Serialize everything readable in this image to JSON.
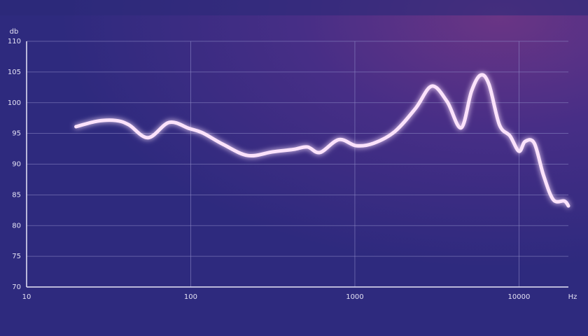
{
  "chart_data": {
    "type": "line",
    "x_label": "Hz",
    "y_label": "db",
    "x": [
      20,
      27,
      35,
      42,
      55,
      74,
      98,
      118,
      158,
      223,
      315,
      422,
      514,
      613,
      799,
      1020,
      1300,
      1750,
      2346,
      2940,
      3645,
      4440,
      5140,
      5840,
      6560,
      7600,
      8810,
      10000,
      10900,
      12400,
      14100,
      16200,
      18900,
      20000
    ],
    "series": [
      {
        "color": "#fbe2fb",
        "values": [
          96.1,
          97.0,
          97.1,
          96.4,
          94.3,
          96.8,
          95.8,
          95.1,
          93.2,
          91.4,
          92.0,
          92.4,
          92.8,
          91.9,
          94.0,
          93.0,
          93.4,
          95.3,
          99.1,
          102.7,
          100.2,
          95.9,
          101.9,
          104.5,
          103.0,
          96.4,
          94.6,
          92.1,
          93.7,
          93.4,
          88.2,
          84.2,
          84.0,
          83.2
        ]
      }
    ],
    "xlim": [
      10,
      20000
    ],
    "ylim": [
      70,
      110
    ],
    "xticks": [
      10,
      100,
      1000,
      10000
    ],
    "yticks": [
      70,
      75,
      80,
      85,
      90,
      95,
      100,
      105,
      110
    ],
    "log_x": true,
    "grid": true
  }
}
